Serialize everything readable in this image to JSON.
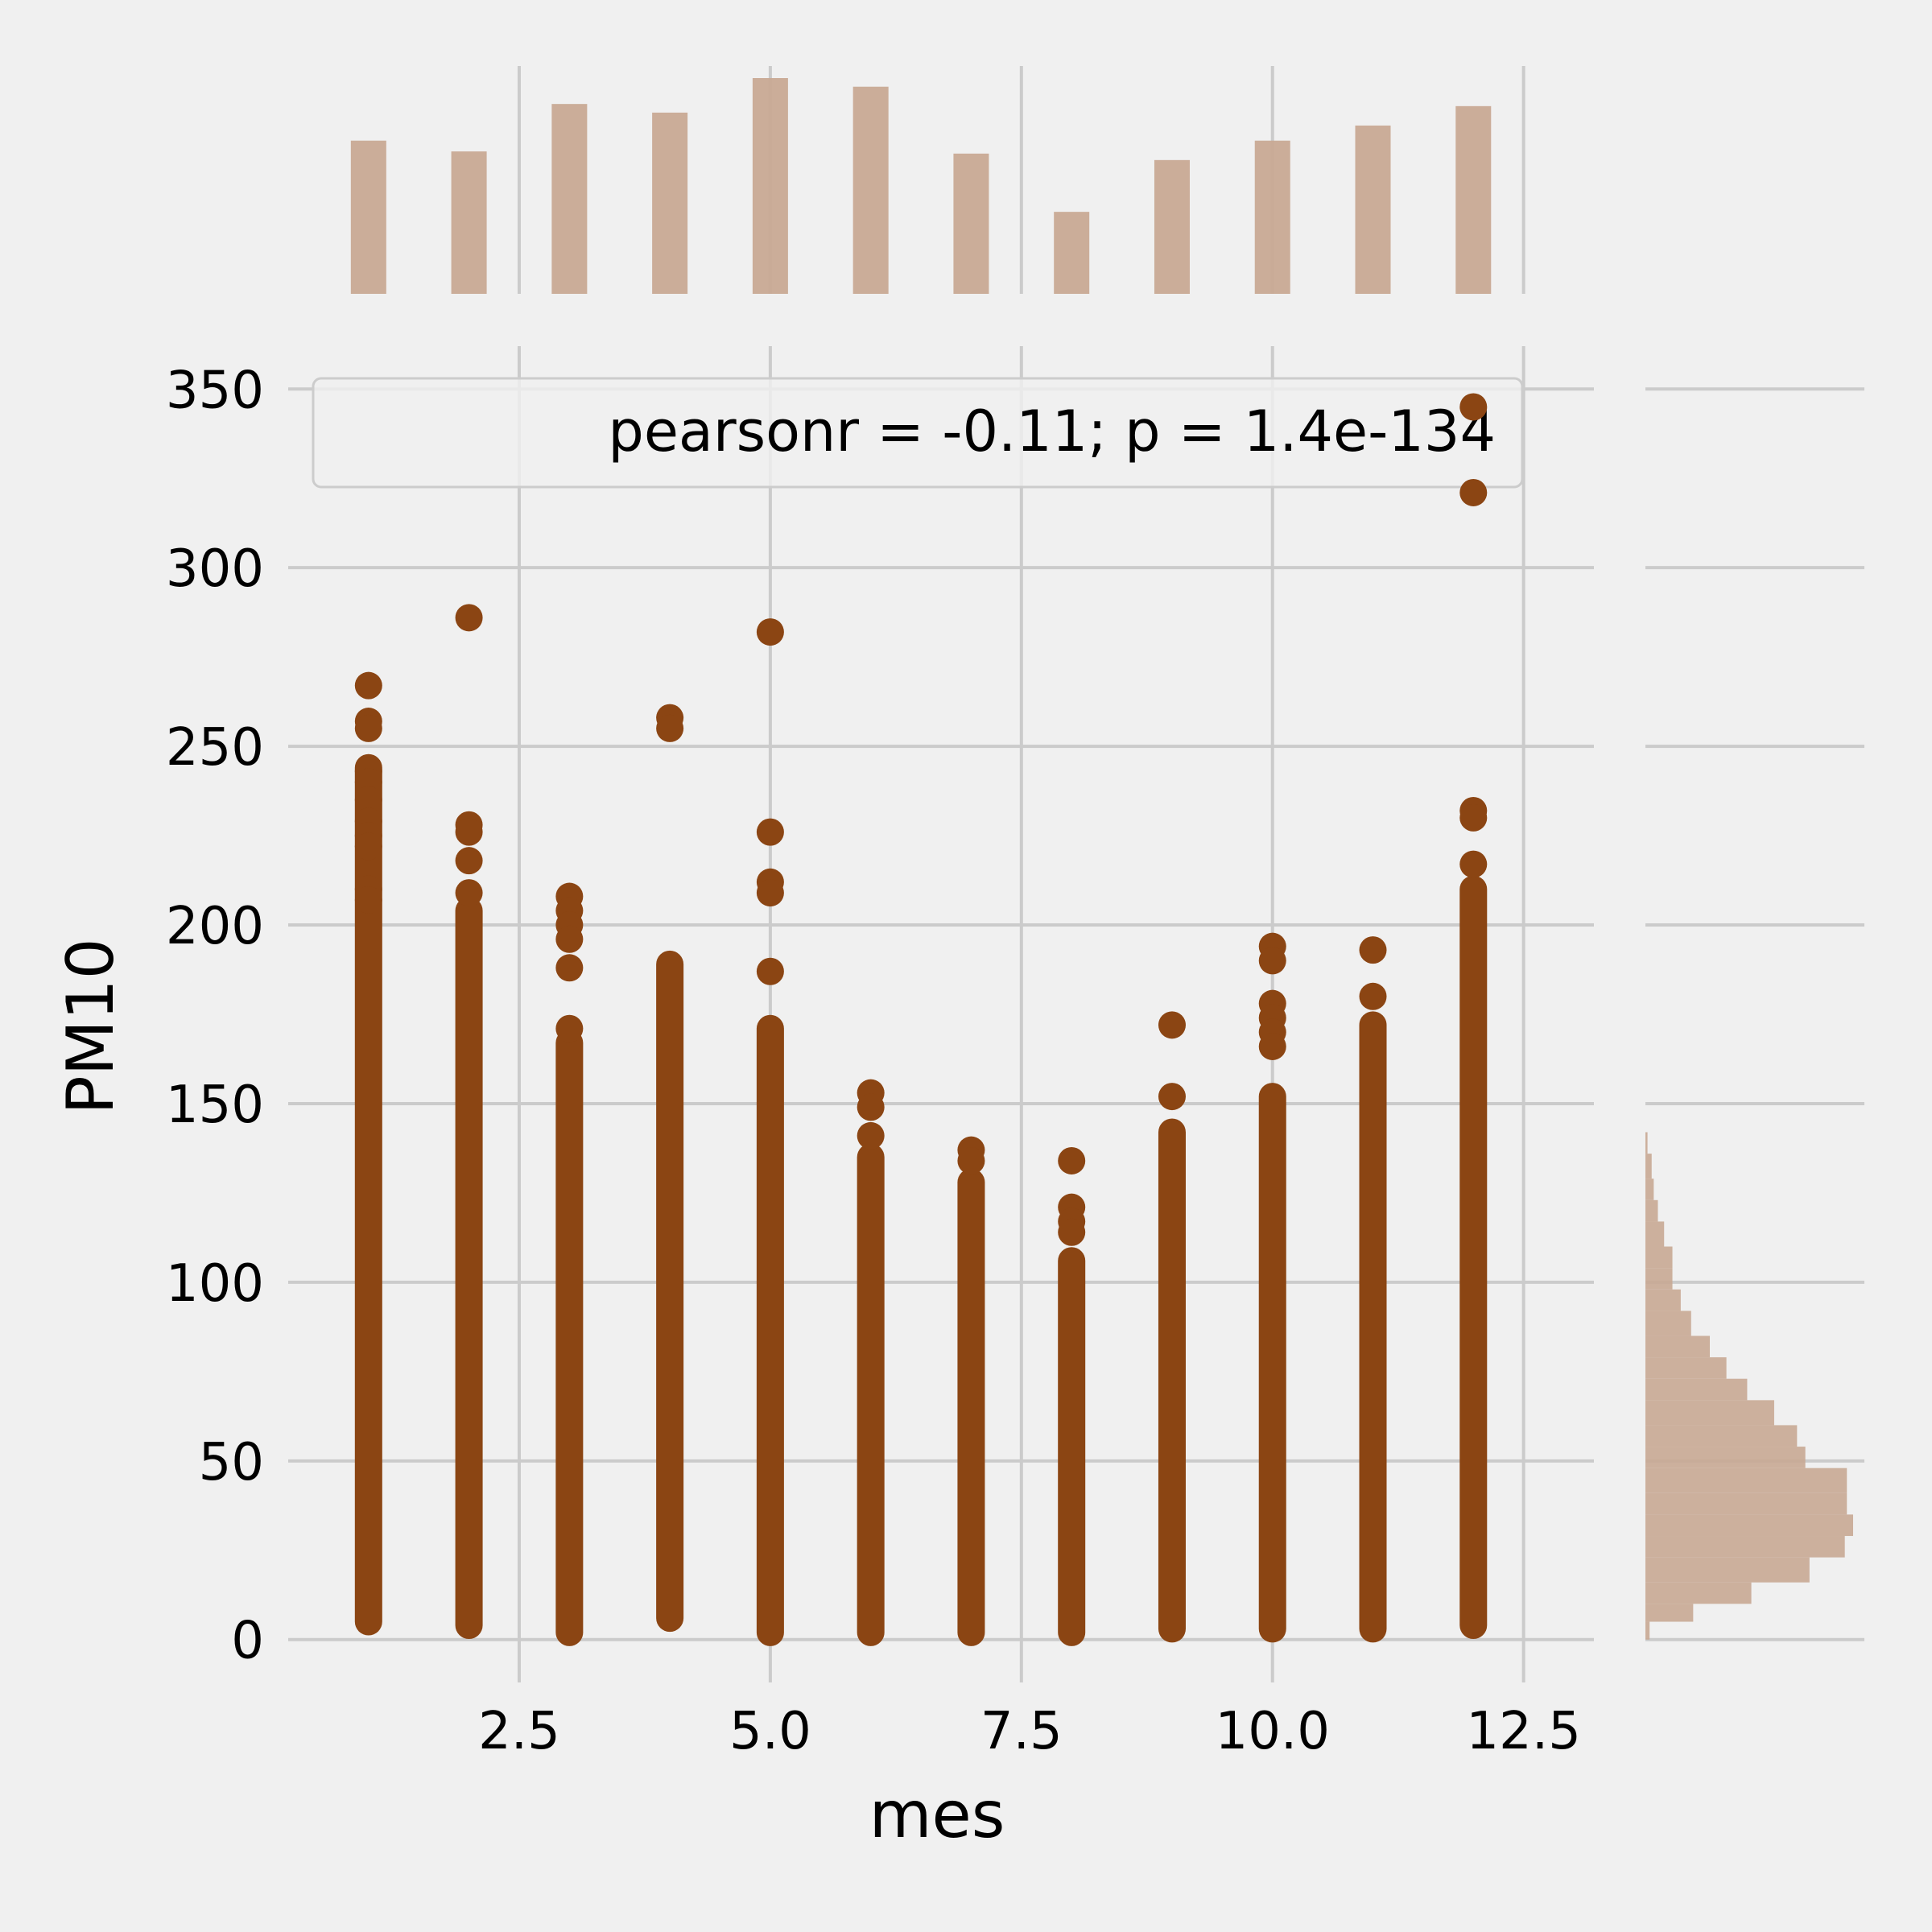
{
  "colors": {
    "background": "#f0f0f0",
    "grid": "#cbcbcb",
    "points": "#8b4513",
    "bars": "#c8a994",
    "legend_border": "#cccccc"
  },
  "chart_data": {
    "type": "scatter",
    "xlabel": "mes",
    "ylabel": "PM10",
    "xlim": [
      0.2,
      13.2
    ],
    "ylim": [
      -12,
      362
    ],
    "x_ticks": [
      2.5,
      5.0,
      7.5,
      10.0,
      12.5
    ],
    "x_tick_labels": [
      "2.5",
      "5.0",
      "7.5",
      "10.0",
      "12.5"
    ],
    "y_ticks": [
      0,
      50,
      100,
      150,
      200,
      250,
      300,
      350
    ],
    "y_tick_labels": [
      "0",
      "50",
      "100",
      "150",
      "200",
      "250",
      "300",
      "350"
    ],
    "grid": true,
    "annotation": "pearsonr = -0.11; p = 1.4e-134",
    "annotation_position": "top",
    "columns": [
      {
        "x": 1,
        "min": 5,
        "max": 244,
        "outliers": [
          267,
          257,
          255,
          243,
          240,
          235,
          229,
          225,
          222,
          210,
          207
        ]
      },
      {
        "x": 2,
        "min": 4,
        "max": 204,
        "outliers": [
          286,
          228,
          226,
          218,
          209
        ]
      },
      {
        "x": 3,
        "min": 2,
        "max": 167,
        "outliers": [
          208,
          204,
          200,
          196,
          188,
          171
        ]
      },
      {
        "x": 4,
        "min": 6,
        "max": 189,
        "outliers": [
          258,
          255
        ]
      },
      {
        "x": 5,
        "min": 2,
        "max": 171,
        "outliers": [
          282,
          226,
          212,
          209,
          187
        ]
      },
      {
        "x": 6,
        "min": 2,
        "max": 135,
        "outliers": [
          153,
          149,
          141
        ]
      },
      {
        "x": 7,
        "min": 2,
        "max": 128,
        "outliers": [
          137,
          134
        ]
      },
      {
        "x": 8,
        "min": 2,
        "max": 106,
        "outliers": [
          134,
          121,
          117,
          114
        ]
      },
      {
        "x": 9,
        "min": 3,
        "max": 142,
        "outliers": [
          172,
          152
        ]
      },
      {
        "x": 10,
        "min": 3,
        "max": 152,
        "outliers": [
          194,
          190,
          178,
          174,
          170,
          166
        ]
      },
      {
        "x": 11,
        "min": 3,
        "max": 172,
        "outliers": [
          193,
          180
        ]
      },
      {
        "x": 12,
        "min": 4,
        "max": 210,
        "outliers": [
          345,
          321,
          232,
          230,
          217
        ]
      }
    ],
    "top_marginal": {
      "type": "bar",
      "categories": [
        1,
        2,
        3,
        4,
        5,
        6,
        7,
        8,
        9,
        10,
        11,
        12
      ],
      "values": [
        0.71,
        0.66,
        0.88,
        0.84,
        1.0,
        0.96,
        0.65,
        0.38,
        0.62,
        0.71,
        0.78,
        0.87
      ]
    },
    "right_marginal": {
      "type": "histogram",
      "orientation": "horizontal",
      "bins": [
        {
          "from": 0,
          "to": 5,
          "value": 0.02
        },
        {
          "from": 5,
          "to": 10,
          "value": 0.23
        },
        {
          "from": 10,
          "to": 16,
          "value": 0.51
        },
        {
          "from": 16,
          "to": 23,
          "value": 0.79
        },
        {
          "from": 23,
          "to": 29,
          "value": 0.96
        },
        {
          "from": 29,
          "to": 35,
          "value": 1.0
        },
        {
          "from": 35,
          "to": 41,
          "value": 0.97
        },
        {
          "from": 41,
          "to": 48,
          "value": 0.97
        },
        {
          "from": 48,
          "to": 54,
          "value": 0.77
        },
        {
          "from": 54,
          "to": 60,
          "value": 0.73
        },
        {
          "from": 60,
          "to": 67,
          "value": 0.62
        },
        {
          "from": 67,
          "to": 73,
          "value": 0.49
        },
        {
          "from": 73,
          "to": 79,
          "value": 0.39
        },
        {
          "from": 79,
          "to": 85,
          "value": 0.31
        },
        {
          "from": 85,
          "to": 92,
          "value": 0.22
        },
        {
          "from": 92,
          "to": 98,
          "value": 0.17
        },
        {
          "from": 98,
          "to": 104,
          "value": 0.13
        },
        {
          "from": 104,
          "to": 110,
          "value": 0.13
        },
        {
          "from": 110,
          "to": 117,
          "value": 0.09
        },
        {
          "from": 117,
          "to": 123,
          "value": 0.06
        },
        {
          "from": 123,
          "to": 129,
          "value": 0.04
        },
        {
          "from": 129,
          "to": 136,
          "value": 0.03
        },
        {
          "from": 136,
          "to": 142,
          "value": 0.01
        }
      ]
    }
  }
}
